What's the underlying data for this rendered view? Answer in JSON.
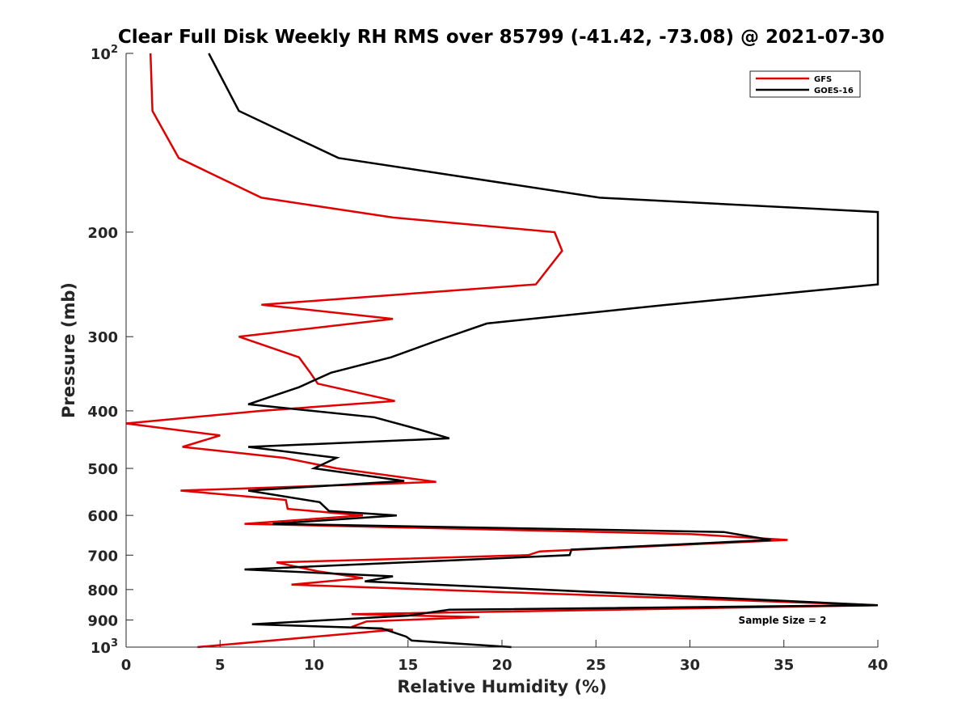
{
  "chart_data": {
    "type": "line",
    "title": "Clear Full Disk Weekly RH RMS over 85799 (-41.42, -73.08) @ 2021-07-30",
    "xlabel": "Relative Humidity (%)",
    "ylabel": "Pressure (mb)",
    "xlim": [
      0,
      40
    ],
    "ylim": [
      100,
      1000
    ],
    "y_scale": "log",
    "y_reversed": true,
    "grid": false,
    "legend_position": "top-right",
    "annotation": "Sample Size = 2",
    "x_ticks": [
      "0",
      "5",
      "10",
      "15",
      "20",
      "25",
      "30",
      "35",
      "40"
    ],
    "y_ticks": [
      {
        "value": 100,
        "base": "10",
        "exp": "2"
      },
      {
        "value": 200,
        "label": "200"
      },
      {
        "value": 300,
        "label": "300"
      },
      {
        "value": 400,
        "label": "400"
      },
      {
        "value": 500,
        "label": "500"
      },
      {
        "value": 600,
        "label": "600"
      },
      {
        "value": 700,
        "label": "700"
      },
      {
        "value": 800,
        "label": "800"
      },
      {
        "value": 900,
        "label": "900"
      },
      {
        "value": 1000,
        "base": "10",
        "exp": "3"
      }
    ],
    "series": [
      {
        "name": "GFS",
        "color": "#e00000",
        "points": [
          [
            1.3,
            100
          ],
          [
            1.4,
            125
          ],
          [
            2.8,
            150
          ],
          [
            7.2,
            175
          ],
          [
            14.2,
            189
          ],
          [
            22.8,
            200
          ],
          [
            23.2,
            215
          ],
          [
            21.8,
            245
          ],
          [
            7.2,
            265
          ],
          [
            14.2,
            280
          ],
          [
            6.0,
            300
          ],
          [
            9.2,
            325
          ],
          [
            9.8,
            345
          ],
          [
            10.2,
            360
          ],
          [
            14.3,
            385
          ],
          [
            7.2,
            400
          ],
          [
            0.0,
            420
          ],
          [
            5.0,
            440
          ],
          [
            3.0,
            460
          ],
          [
            8.4,
            480
          ],
          [
            11.2,
            500
          ],
          [
            16.5,
            527
          ],
          [
            2.9,
            545
          ],
          [
            8.5,
            565
          ],
          [
            8.6,
            585
          ],
          [
            12.6,
            600
          ],
          [
            6.3,
            620
          ],
          [
            30.0,
            645
          ],
          [
            35.2,
            660
          ],
          [
            22.0,
            690
          ],
          [
            21.4,
            700
          ],
          [
            8.0,
            720
          ],
          [
            10.2,
            745
          ],
          [
            12.6,
            765
          ],
          [
            8.8,
            785
          ],
          [
            40.0,
            850
          ],
          [
            12.0,
            880
          ],
          [
            18.8,
            890
          ],
          [
            12.8,
            905
          ],
          [
            12.0,
            925
          ],
          [
            14.2,
            935
          ],
          [
            3.8,
            1000
          ]
        ]
      },
      {
        "name": "GOES-16",
        "color": "#000000",
        "points": [
          [
            4.4,
            100
          ],
          [
            6.0,
            125
          ],
          [
            11.3,
            150
          ],
          [
            25.2,
            175
          ],
          [
            40.0,
            185
          ],
          [
            40.0,
            245
          ],
          [
            28.8,
            265
          ],
          [
            19.2,
            285
          ],
          [
            16.5,
            305
          ],
          [
            14.1,
            325
          ],
          [
            10.9,
            345
          ],
          [
            9.2,
            365
          ],
          [
            6.5,
            390
          ],
          [
            13.2,
            410
          ],
          [
            15.6,
            430
          ],
          [
            17.2,
            445
          ],
          [
            6.5,
            460
          ],
          [
            11.2,
            480
          ],
          [
            10.0,
            500
          ],
          [
            14.8,
            525
          ],
          [
            6.5,
            545
          ],
          [
            10.3,
            570
          ],
          [
            10.8,
            590
          ],
          [
            14.4,
            600
          ],
          [
            7.8,
            620
          ],
          [
            31.8,
            640
          ],
          [
            34.3,
            660
          ],
          [
            23.7,
            685
          ],
          [
            23.6,
            700
          ],
          [
            6.3,
            740
          ],
          [
            14.2,
            760
          ],
          [
            12.7,
            775
          ],
          [
            40.0,
            850
          ],
          [
            17.2,
            865
          ],
          [
            15.0,
            885
          ],
          [
            6.7,
            915
          ],
          [
            13.6,
            930
          ],
          [
            14.9,
            960
          ],
          [
            15.2,
            975
          ],
          [
            20.5,
            1000
          ]
        ]
      }
    ]
  }
}
